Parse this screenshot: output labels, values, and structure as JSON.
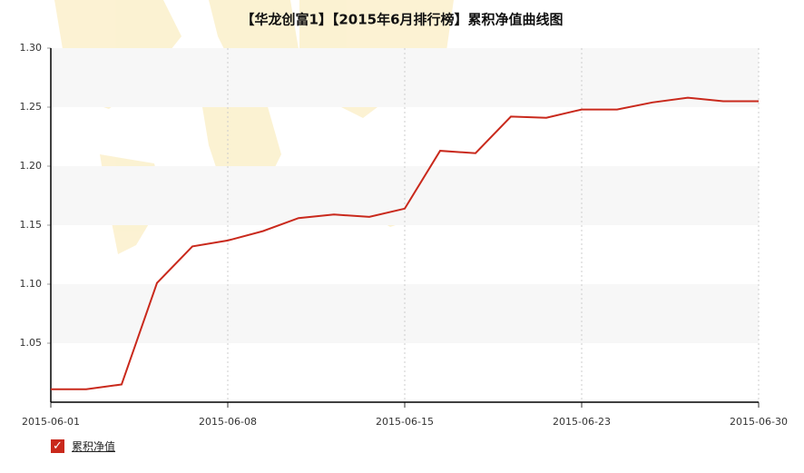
{
  "chart_data": {
    "type": "line",
    "title": "【华龙创富1】【2015年6月排行榜】累积净值曲线图",
    "categories": [
      "2015-06-01",
      null,
      null,
      null,
      null,
      "2015-06-08",
      null,
      null,
      null,
      null,
      "2015-06-15",
      null,
      null,
      null,
      null,
      "2015-06-23",
      null,
      null,
      null,
      null,
      "2015-06-30"
    ],
    "series": [
      {
        "name": "累积净值",
        "color": "#c9291c",
        "values": [
          1.011,
          1.011,
          1.015,
          1.101,
          1.132,
          1.137,
          1.145,
          1.156,
          1.159,
          1.157,
          1.164,
          1.213,
          1.211,
          1.242,
          1.241,
          1.248,
          1.248,
          1.254,
          1.258,
          1.255,
          1.255
        ]
      }
    ],
    "ylim": [
      1.0,
      1.3
    ],
    "yticks": [
      1.05,
      {
        "value": 1.1,
        "label": "1.10"
      },
      1.15,
      {
        "value": 1.2,
        "label": "1.20"
      },
      1.25,
      {
        "value": 1.3,
        "label": "1.30"
      }
    ],
    "grid": true
  }
}
